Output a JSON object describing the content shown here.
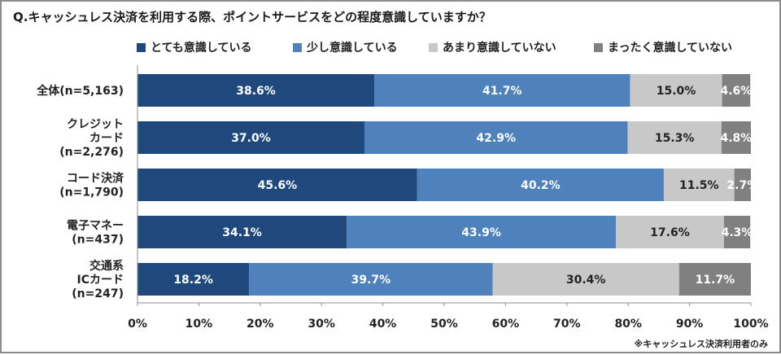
{
  "title": "Q.キャッシュレス決済を利用する際、ポイントサービスをどの程度意識していますか？",
  "note": "※キャッシュレス決済利用者のみ",
  "chart_data": {
    "type": "bar",
    "orientation": "horizontal",
    "stacked": true,
    "categories": [
      [
        "全体(n=5,163)"
      ],
      [
        "クレジット",
        "カード",
        "(n=2,276)"
      ],
      [
        "コード決済",
        "(n=1,790)"
      ],
      [
        "電子マネー",
        "(n=437)"
      ],
      [
        "交通系",
        "ICカード",
        "(n=247)"
      ]
    ],
    "series": [
      {
        "name": "とても意識している",
        "color": "#1f497d",
        "values": [
          38.6,
          37.0,
          45.6,
          34.1,
          18.2
        ],
        "labels": [
          "38.6%",
          "37.0%",
          "45.6%",
          "34.1%",
          "18.2%"
        ]
      },
      {
        "name": "少し意識している",
        "color": "#4f81bd",
        "values": [
          41.7,
          42.9,
          40.2,
          43.9,
          39.7
        ],
        "labels": [
          "41.7%",
          "42.9%",
          "40.2%",
          "43.9%",
          "39.7%"
        ]
      },
      {
        "name": "あまり意識していない",
        "color": "#c8c8c8",
        "values": [
          15.0,
          15.3,
          11.5,
          17.6,
          30.4
        ],
        "labels": [
          "15.0%",
          "15.3%",
          "11.5%",
          "17.6%",
          "30.4%"
        ]
      },
      {
        "name": "まったく意識していない",
        "color": "#808080",
        "values": [
          4.6,
          4.8,
          2.7,
          4.3,
          11.7
        ],
        "labels": [
          "4.6%",
          "4.8%",
          "2.7%",
          "4.3%",
          "11.7%"
        ]
      }
    ],
    "label_colors": [
      "#ffffff",
      "#ffffff",
      "#222222",
      "#ffffff"
    ],
    "xlim": [
      0,
      100
    ],
    "xticks": [
      "0%",
      "10%",
      "20%",
      "30%",
      "40%",
      "50%",
      "60%",
      "70%",
      "80%",
      "90%",
      "100%"
    ],
    "grid": false,
    "legend_position": "top"
  }
}
